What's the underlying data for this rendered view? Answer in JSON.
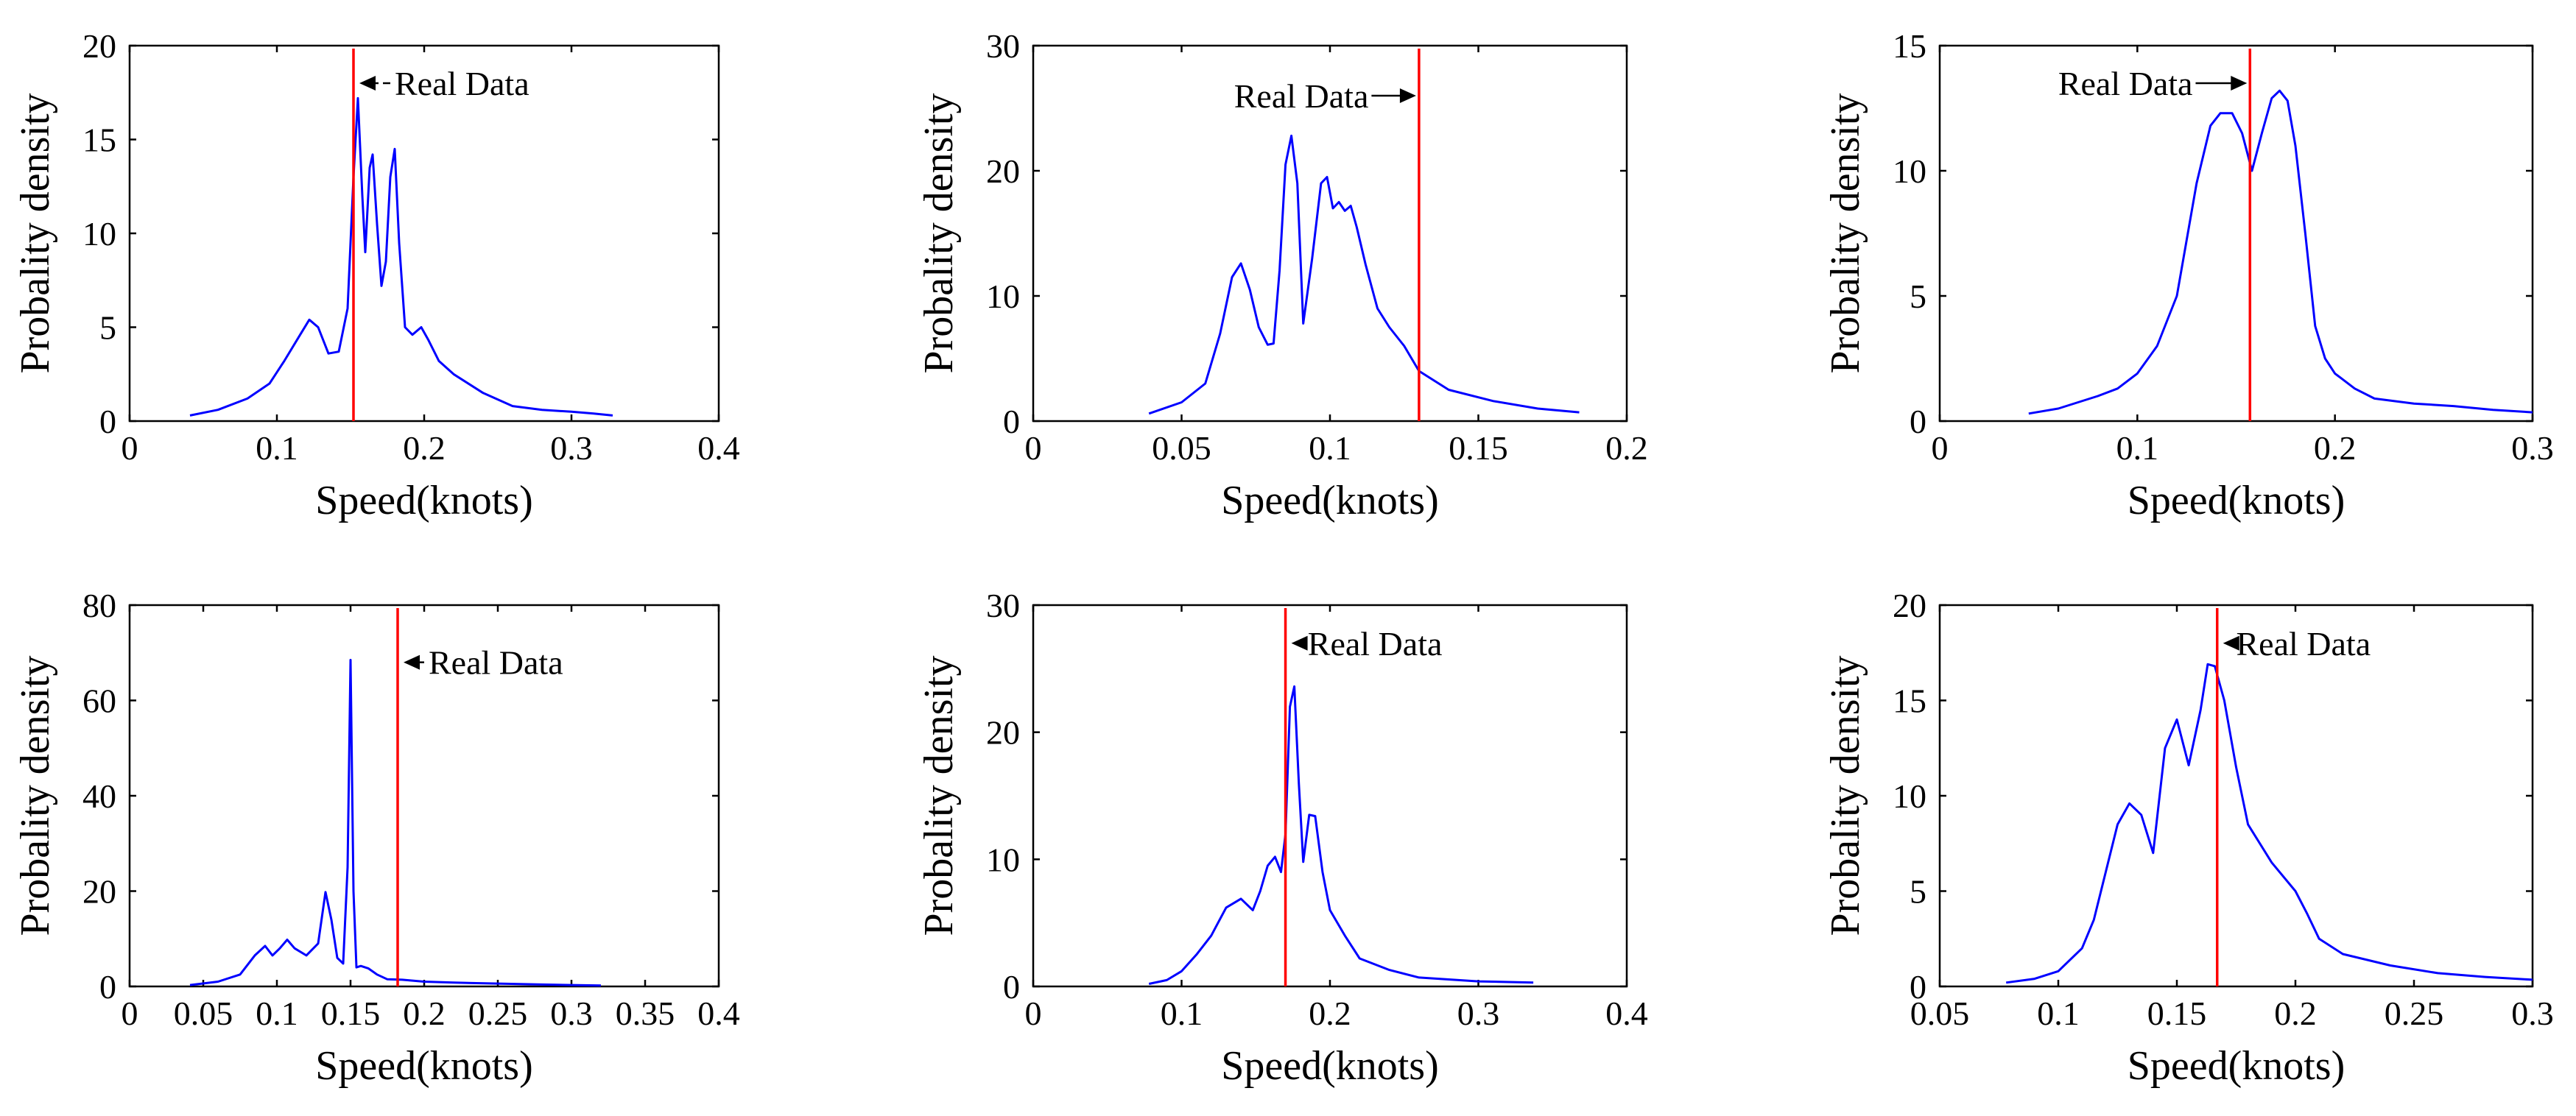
{
  "colors": {
    "density": "#0000ff",
    "real": "#ff0000",
    "axis": "#000000"
  },
  "chart_data": [
    {
      "type": "line",
      "title": "",
      "xlabel": "Speed(knots)",
      "ylabel": "Probality density",
      "xlim": [
        0,
        0.4
      ],
      "ylim": [
        0,
        20
      ],
      "xticks": [
        0,
        0.1,
        0.2,
        0.3,
        0.4
      ],
      "xtick_labels": [
        "0",
        "0.1",
        "0.2",
        "0.3",
        "0.4"
      ],
      "yticks": [
        0,
        5,
        10,
        15,
        20
      ],
      "ytick_labels": [
        "0",
        "5",
        "10",
        "15",
        "20"
      ],
      "series": [
        {
          "x": [
            0.041,
            0.06,
            0.08,
            0.095,
            0.105,
            0.115,
            0.122,
            0.128,
            0.135,
            0.142,
            0.148,
            0.152,
            0.155,
            0.158,
            0.16,
            0.163,
            0.165,
            0.168,
            0.171,
            0.174,
            0.177,
            0.18,
            0.183,
            0.187,
            0.192,
            0.198,
            0.203,
            0.21,
            0.22,
            0.24,
            0.26,
            0.28,
            0.3,
            0.315,
            0.328
          ],
          "y": [
            0.3,
            0.6,
            1.2,
            2.0,
            3.2,
            4.5,
            5.4,
            5.0,
            3.6,
            3.7,
            6.0,
            13.0,
            17.2,
            12.0,
            9.0,
            13.5,
            14.2,
            10.5,
            7.2,
            8.5,
            13.0,
            14.5,
            9.5,
            5.0,
            4.6,
            5.0,
            4.3,
            3.2,
            2.5,
            1.5,
            0.8,
            0.6,
            0.5,
            0.4,
            0.3
          ]
        }
      ],
      "real_data_x": 0.152,
      "annotation": {
        "text": "Real Data",
        "arrow": "left",
        "x": 0.18,
        "y": 18
      }
    },
    {
      "type": "line",
      "title": "",
      "xlabel": "Speed(knots)",
      "ylabel": "Probality density",
      "xlim": [
        0,
        0.2
      ],
      "ylim": [
        0,
        30
      ],
      "xticks": [
        0,
        0.05,
        0.1,
        0.15,
        0.2
      ],
      "xtick_labels": [
        "0",
        "0.05",
        "0.1",
        "0.15",
        "0.2"
      ],
      "yticks": [
        0,
        10,
        20,
        30
      ],
      "ytick_labels": [
        "0",
        "10",
        "20",
        "30"
      ],
      "series": [
        {
          "x": [
            0.039,
            0.05,
            0.058,
            0.063,
            0.067,
            0.07,
            0.073,
            0.076,
            0.079,
            0.081,
            0.083,
            0.085,
            0.087,
            0.089,
            0.091,
            0.094,
            0.097,
            0.099,
            0.101,
            0.103,
            0.105,
            0.107,
            0.109,
            0.112,
            0.116,
            0.12,
            0.125,
            0.13,
            0.14,
            0.155,
            0.17,
            0.184
          ],
          "y": [
            0.6,
            1.5,
            3.0,
            7.0,
            11.5,
            12.6,
            10.5,
            7.5,
            6.1,
            6.2,
            12.0,
            20.5,
            22.8,
            19.0,
            7.8,
            13.0,
            19.0,
            19.5,
            17.0,
            17.5,
            16.8,
            17.2,
            15.5,
            12.5,
            9.0,
            7.5,
            6.0,
            4.0,
            2.5,
            1.6,
            1.0,
            0.7
          ]
        }
      ],
      "real_data_x": 0.13,
      "annotation": {
        "text": "Real Data",
        "arrow": "right",
        "x": 0.113,
        "y": 26
      }
    },
    {
      "type": "line",
      "title": "",
      "xlabel": "Speed(knots)",
      "ylabel": "Probality density",
      "xlim": [
        0,
        0.3
      ],
      "ylim": [
        0,
        15
      ],
      "xticks": [
        0,
        0.1,
        0.2,
        0.3
      ],
      "xtick_labels": [
        "0",
        "0.1",
        "0.2",
        "0.3"
      ],
      "yticks": [
        0,
        5,
        10,
        15
      ],
      "ytick_labels": [
        "0",
        "5",
        "10",
        "15"
      ],
      "series": [
        {
          "x": [
            0.045,
            0.06,
            0.08,
            0.09,
            0.1,
            0.11,
            0.12,
            0.13,
            0.137,
            0.142,
            0.148,
            0.153,
            0.158,
            0.163,
            0.168,
            0.172,
            0.176,
            0.18,
            0.185,
            0.19,
            0.195,
            0.2,
            0.21,
            0.22,
            0.24,
            0.26,
            0.28,
            0.3
          ],
          "y": [
            0.3,
            0.5,
            1.0,
            1.3,
            1.9,
            3.0,
            5.0,
            9.5,
            11.8,
            12.3,
            12.3,
            11.5,
            10.0,
            11.5,
            12.9,
            13.2,
            12.8,
            11.0,
            7.5,
            3.8,
            2.5,
            1.9,
            1.3,
            0.9,
            0.7,
            0.6,
            0.45,
            0.35
          ]
        }
      ],
      "real_data_x": 0.157,
      "annotation": {
        "text": "Real Data",
        "arrow": "right",
        "x": 0.128,
        "y": 13.5
      }
    },
    {
      "type": "line",
      "title": "",
      "xlabel": "Speed(knots)",
      "ylabel": "Probality density",
      "xlim": [
        0,
        0.4
      ],
      "ylim": [
        0,
        80
      ],
      "xticks": [
        0,
        0.05,
        0.1,
        0.15,
        0.2,
        0.25,
        0.3,
        0.35,
        0.4
      ],
      "xtick_labels": [
        "0",
        "0.05",
        "0.1",
        "0.15",
        "0.2",
        "0.25",
        "0.3",
        "0.35",
        "0.4"
      ],
      "yticks": [
        0,
        20,
        40,
        60,
        80
      ],
      "ytick_labels": [
        "0",
        "20",
        "40",
        "60",
        "80"
      ],
      "series": [
        {
          "x": [
            0.041,
            0.06,
            0.075,
            0.085,
            0.092,
            0.097,
            0.102,
            0.107,
            0.112,
            0.12,
            0.128,
            0.133,
            0.137,
            0.141,
            0.145,
            0.148,
            0.15,
            0.152,
            0.154,
            0.157,
            0.162,
            0.168,
            0.175,
            0.185,
            0.2,
            0.22,
            0.25,
            0.28,
            0.3,
            0.32
          ],
          "y": [
            0.3,
            1.0,
            2.5,
            6.5,
            8.5,
            6.5,
            8.0,
            9.8,
            8.0,
            6.5,
            9.0,
            19.8,
            14.0,
            6.0,
            4.8,
            25.0,
            68.5,
            20.0,
            4.0,
            4.3,
            3.8,
            2.5,
            1.5,
            1.4,
            1.0,
            0.8,
            0.6,
            0.4,
            0.3,
            0.2
          ]
        }
      ],
      "real_data_x": 0.182,
      "annotation": {
        "text": "Real Data",
        "arrow": "left",
        "x": 0.203,
        "y": 68
      }
    },
    {
      "type": "line",
      "title": "",
      "xlabel": "Speed(knots)",
      "ylabel": "Probality density",
      "xlim": [
        0,
        0.4
      ],
      "ylim": [
        0,
        30
      ],
      "xticks": [
        0,
        0.1,
        0.2,
        0.3,
        0.4
      ],
      "xtick_labels": [
        "0",
        "0.1",
        "0.2",
        "0.3",
        "0.4"
      ],
      "yticks": [
        0,
        10,
        20,
        30
      ],
      "ytick_labels": [
        "0",
        "10",
        "20",
        "30"
      ],
      "series": [
        {
          "x": [
            0.078,
            0.09,
            0.1,
            0.11,
            0.12,
            0.13,
            0.14,
            0.148,
            0.153,
            0.158,
            0.163,
            0.167,
            0.17,
            0.173,
            0.176,
            0.179,
            0.182,
            0.186,
            0.19,
            0.195,
            0.2,
            0.21,
            0.22,
            0.24,
            0.26,
            0.3,
            0.337
          ],
          "y": [
            0.2,
            0.5,
            1.2,
            2.5,
            4.0,
            6.2,
            6.9,
            6.0,
            7.5,
            9.5,
            10.2,
            9.0,
            12.0,
            22.0,
            23.6,
            16.0,
            9.8,
            13.5,
            13.4,
            9.0,
            6.0,
            4.0,
            2.2,
            1.3,
            0.7,
            0.4,
            0.3
          ]
        }
      ],
      "real_data_x": 0.17,
      "annotation": {
        "text": "Real Data",
        "arrow": "left",
        "x": 0.185,
        "y": 27
      }
    },
    {
      "type": "line",
      "title": "",
      "xlabel": "Speed(knots)",
      "ylabel": "Probality density",
      "xlim": [
        0.05,
        0.3
      ],
      "ylim": [
        0,
        20
      ],
      "xticks": [
        0.05,
        0.1,
        0.15,
        0.2,
        0.25,
        0.3
      ],
      "xtick_labels": [
        "0.05",
        "0.1",
        "0.15",
        "0.2",
        "0.25",
        "0.3"
      ],
      "yticks": [
        0,
        5,
        10,
        15,
        20
      ],
      "ytick_labels": [
        "0",
        "5",
        "10",
        "15",
        "20"
      ],
      "series": [
        {
          "x": [
            0.078,
            0.09,
            0.1,
            0.11,
            0.115,
            0.12,
            0.125,
            0.13,
            0.135,
            0.14,
            0.145,
            0.15,
            0.155,
            0.16,
            0.163,
            0.166,
            0.17,
            0.175,
            0.18,
            0.19,
            0.2,
            0.205,
            0.21,
            0.22,
            0.24,
            0.26,
            0.28,
            0.3
          ],
          "y": [
            0.2,
            0.4,
            0.8,
            2.0,
            3.5,
            6.0,
            8.5,
            9.6,
            9.0,
            7.0,
            12.5,
            14.0,
            11.6,
            14.5,
            16.9,
            16.8,
            15.0,
            11.5,
            8.5,
            6.5,
            5.0,
            3.8,
            2.5,
            1.7,
            1.1,
            0.7,
            0.5,
            0.35
          ]
        }
      ],
      "real_data_x": 0.167,
      "annotation": {
        "text": "Real Data",
        "arrow": "left",
        "x": 0.175,
        "y": 18
      }
    }
  ]
}
